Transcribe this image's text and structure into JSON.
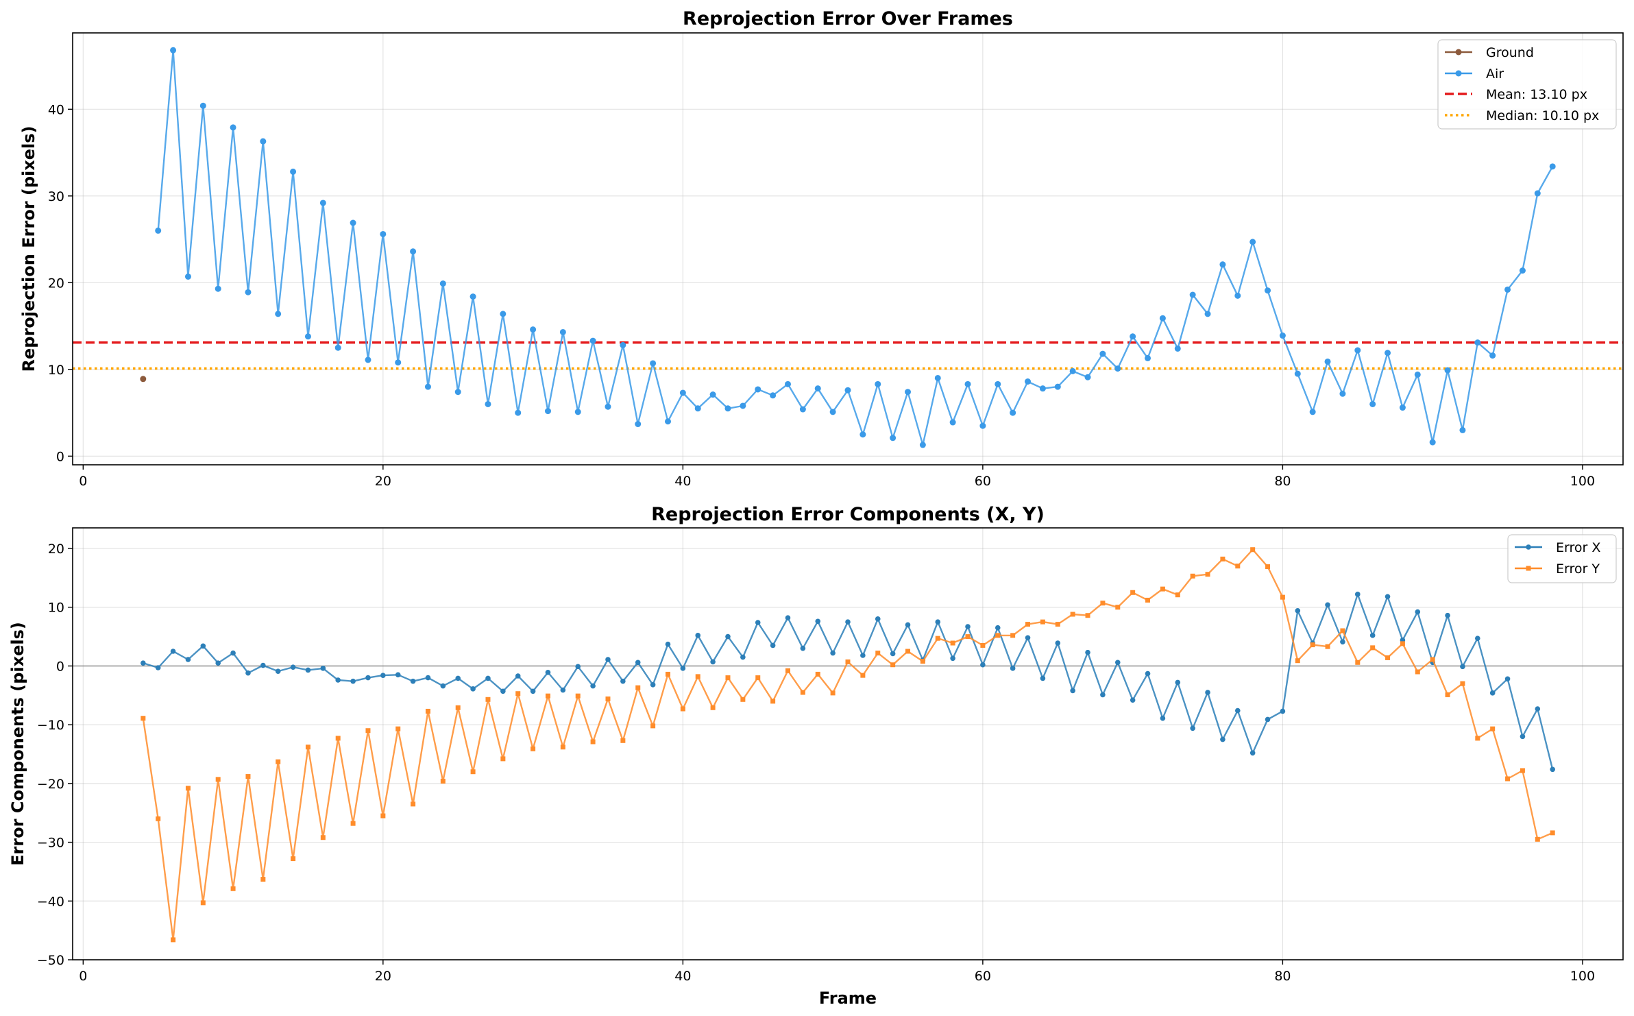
{
  "figure": {
    "xlabel": "Frame"
  },
  "chart_data": [
    {
      "type": "line",
      "title": "Reprojection Error Over Frames",
      "xlabel": "",
      "ylabel": "Reprojection Error (pixels)",
      "xlim": [
        -0.7,
        102.7
      ],
      "ylim": [
        -1.0,
        48.8
      ],
      "xticks": [
        0,
        20,
        40,
        60,
        80,
        100
      ],
      "yticks": [
        0,
        10,
        20,
        30,
        40
      ],
      "grid": true,
      "legend_position": "top-right",
      "series": [
        {
          "name": "Ground",
          "color": "#8c5a3c",
          "marker": "circle",
          "x": [
            4
          ],
          "y": [
            8.9
          ]
        },
        {
          "name": "Air",
          "color": "#3a9ae8",
          "marker": "circle",
          "x": [
            5,
            6,
            7,
            8,
            9,
            10,
            11,
            12,
            13,
            14,
            15,
            16,
            17,
            18,
            19,
            20,
            21,
            22,
            23,
            24,
            25,
            26,
            27,
            28,
            29,
            30,
            31,
            32,
            33,
            34,
            35,
            36,
            37,
            38,
            39,
            40,
            41,
            42,
            43,
            44,
            45,
            46,
            47,
            48,
            49,
            50,
            51,
            52,
            53,
            54,
            55,
            56,
            57,
            58,
            59,
            60,
            61,
            62,
            63,
            64,
            65,
            66,
            67,
            68,
            69,
            70,
            71,
            72,
            73,
            74,
            75,
            76,
            77,
            78,
            79,
            80,
            81,
            82,
            83,
            84,
            85,
            86,
            87,
            88,
            89,
            90,
            91,
            92,
            93,
            94,
            95,
            96,
            97,
            98
          ],
          "y": [
            26.0,
            46.8,
            20.7,
            40.4,
            19.3,
            37.9,
            18.9,
            36.3,
            16.4,
            32.8,
            13.8,
            29.2,
            12.5,
            26.9,
            11.1,
            25.6,
            10.8,
            23.6,
            8.0,
            19.9,
            7.4,
            18.4,
            6.0,
            16.4,
            5.0,
            14.6,
            5.2,
            14.3,
            5.1,
            13.3,
            5.7,
            12.8,
            3.7,
            10.7,
            4.0,
            7.3,
            5.5,
            7.1,
            5.5,
            5.8,
            7.7,
            7.0,
            8.3,
            5.4,
            7.8,
            5.1,
            7.6,
            2.5,
            8.3,
            2.1,
            7.4,
            1.3,
            9.0,
            3.9,
            8.3,
            3.5,
            8.3,
            5.0,
            8.6,
            7.8,
            8.0,
            9.8,
            9.1,
            11.8,
            10.1,
            13.8,
            11.3,
            15.9,
            12.4,
            18.6,
            16.4,
            22.1,
            18.5,
            24.7,
            19.1,
            13.9,
            9.5,
            5.1,
            10.9,
            7.2,
            12.2,
            6.0,
            11.9,
            5.6,
            9.4,
            1.6,
            9.9,
            3.0,
            13.1,
            11.6,
            19.2,
            21.4,
            30.3,
            33.4
          ]
        }
      ],
      "reference_lines": [
        {
          "label": "Mean: 13.10 px",
          "value": 13.1,
          "color": "#e41a1c",
          "style": "dashed"
        },
        {
          "label": "Median: 10.10 px",
          "value": 10.1,
          "color": "#ffa500",
          "style": "dotted"
        }
      ]
    },
    {
      "type": "line",
      "title": "Reprojection Error Components (X, Y)",
      "xlabel": "Frame",
      "ylabel": "Error Components (pixels)",
      "xlim": [
        -0.7,
        102.7
      ],
      "ylim": [
        -50,
        23.5
      ],
      "xticks": [
        0,
        20,
        40,
        60,
        80,
        100
      ],
      "yticks": [
        -50,
        -40,
        -30,
        -20,
        -10,
        0,
        10,
        20
      ],
      "grid": true,
      "zero_line": true,
      "legend_position": "top-right",
      "series": [
        {
          "name": "Error X",
          "color": "#2c7fb8",
          "marker": "circle",
          "x": [
            4,
            5,
            6,
            7,
            8,
            9,
            10,
            11,
            12,
            13,
            14,
            15,
            16,
            17,
            18,
            19,
            20,
            21,
            22,
            23,
            24,
            25,
            26,
            27,
            28,
            29,
            30,
            31,
            32,
            33,
            34,
            35,
            36,
            37,
            38,
            39,
            40,
            41,
            42,
            43,
            44,
            45,
            46,
            47,
            48,
            49,
            50,
            51,
            52,
            53,
            54,
            55,
            56,
            57,
            58,
            59,
            60,
            61,
            62,
            63,
            64,
            65,
            66,
            67,
            68,
            69,
            70,
            71,
            72,
            73,
            74,
            75,
            76,
            77,
            78,
            79,
            80,
            81,
            82,
            83,
            84,
            85,
            86,
            87,
            88,
            89,
            90,
            91,
            92,
            93,
            94,
            95,
            96,
            97,
            98
          ],
          "y": [
            0.5,
            -0.3,
            2.5,
            1.1,
            3.4,
            0.5,
            2.2,
            -1.2,
            0.1,
            -0.9,
            -0.2,
            -0.7,
            -0.4,
            -2.4,
            -2.6,
            -2.0,
            -1.6,
            -1.5,
            -2.6,
            -2.0,
            -3.4,
            -2.1,
            -3.9,
            -2.1,
            -4.3,
            -1.7,
            -4.3,
            -1.1,
            -4.1,
            -0.1,
            -3.4,
            1.1,
            -2.6,
            0.6,
            -3.2,
            3.7,
            -0.4,
            5.2,
            0.7,
            5.0,
            1.5,
            7.4,
            3.5,
            8.2,
            3.0,
            7.6,
            2.2,
            7.5,
            1.8,
            8.0,
            2.1,
            7.0,
            1.0,
            7.5,
            1.3,
            6.7,
            0.2,
            6.5,
            -0.4,
            4.8,
            -2.1,
            3.9,
            -4.2,
            2.3,
            -4.9,
            0.6,
            -5.8,
            -1.3,
            -8.9,
            -2.8,
            -10.6,
            -4.5,
            -12.5,
            -7.6,
            -14.8,
            -9.1,
            -7.7,
            9.4,
            3.9,
            10.4,
            4.1,
            12.2,
            5.2,
            11.8,
            4.4,
            9.2,
            0.6,
            8.6,
            -0.1,
            4.7,
            -4.6,
            -2.2,
            -12.0,
            -7.3,
            -17.6
          ]
        },
        {
          "name": "Error Y",
          "color": "#ff8c2a",
          "marker": "square",
          "x": [
            4,
            5,
            6,
            7,
            8,
            9,
            10,
            11,
            12,
            13,
            14,
            15,
            16,
            17,
            18,
            19,
            20,
            21,
            22,
            23,
            24,
            25,
            26,
            27,
            28,
            29,
            30,
            31,
            32,
            33,
            34,
            35,
            36,
            37,
            38,
            39,
            40,
            41,
            42,
            43,
            44,
            45,
            46,
            47,
            48,
            49,
            50,
            51,
            52,
            53,
            54,
            55,
            56,
            57,
            58,
            59,
            60,
            61,
            62,
            63,
            64,
            65,
            66,
            67,
            68,
            69,
            70,
            71,
            72,
            73,
            74,
            75,
            76,
            77,
            78,
            79,
            80,
            81,
            82,
            83,
            84,
            85,
            86,
            87,
            88,
            89,
            90,
            91,
            92,
            93,
            94,
            95,
            96,
            97,
            98
          ],
          "y": [
            -8.9,
            -26.0,
            -46.6,
            -20.8,
            -40.3,
            -19.3,
            -37.9,
            -18.8,
            -36.3,
            -16.3,
            -32.8,
            -13.8,
            -29.2,
            -12.3,
            -26.8,
            -11.0,
            -25.5,
            -10.7,
            -23.5,
            -7.7,
            -19.6,
            -7.1,
            -18.0,
            -5.7,
            -15.8,
            -4.7,
            -14.1,
            -5.1,
            -13.8,
            -5.1,
            -12.9,
            -5.6,
            -12.7,
            -3.7,
            -10.2,
            -1.4,
            -7.3,
            -1.8,
            -7.1,
            -2.0,
            -5.7,
            -2.0,
            -6.0,
            -0.8,
            -4.5,
            -1.4,
            -4.6,
            0.7,
            -1.6,
            2.2,
            0.2,
            2.5,
            0.8,
            4.7,
            3.9,
            5.0,
            3.5,
            5.2,
            5.2,
            7.1,
            7.5,
            7.1,
            8.8,
            8.6,
            10.7,
            10.0,
            12.5,
            11.2,
            13.1,
            12.1,
            15.3,
            15.6,
            18.2,
            17.0,
            19.8,
            16.9,
            11.7,
            0.9,
            3.6,
            3.3,
            6.0,
            0.6,
            3.1,
            1.4,
            3.8,
            -1.0,
            1.1,
            -4.9,
            -3.0,
            -12.3,
            -10.7,
            -19.2,
            -17.8,
            -29.5,
            -28.4
          ]
        }
      ]
    }
  ]
}
